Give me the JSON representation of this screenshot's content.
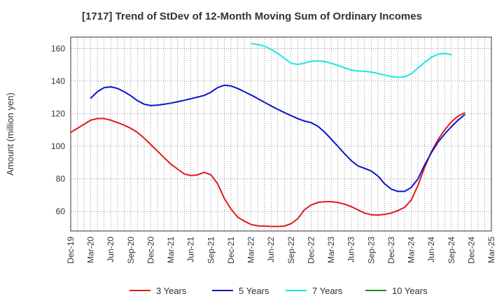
{
  "chart_data": {
    "type": "line",
    "title": "[1717]  Trend of StDev of 12-Month Moving Sum of Ordinary Incomes",
    "ylabel": "Amount (million yen)",
    "xlabel": "",
    "ylim": [
      48,
      167
    ],
    "yticks": [
      60,
      80,
      100,
      120,
      140,
      160
    ],
    "xtick_labels": [
      "Dec-19",
      "Mar-20",
      "Jun-20",
      "Sep-20",
      "Dec-20",
      "Mar-21",
      "Jun-21",
      "Sep-21",
      "Dec-21",
      "Mar-22",
      "Jun-22",
      "Sep-22",
      "Dec-22",
      "Mar-23",
      "Jun-23",
      "Sep-23",
      "Dec-23",
      "Mar-24",
      "Jun-24",
      "Sep-24",
      "Dec-24",
      "Mar-25"
    ],
    "grid": true,
    "legend_position": "bottom",
    "series": [
      {
        "name": "3 Years",
        "color": "#e01a1a",
        "start": "Dec-19",
        "values": [
          108.5,
          111,
          113.5,
          116,
          117,
          117,
          116,
          114.5,
          113,
          111,
          108.5,
          105,
          101,
          97,
          93,
          89,
          86,
          83,
          82,
          82.5,
          84,
          82.5,
          77,
          68,
          61.5,
          56.5,
          54,
          52,
          51.2,
          51,
          50.8,
          50.8,
          51,
          52.5,
          55.5,
          61,
          64,
          65.5,
          66,
          66,
          65.5,
          64.5,
          63,
          61,
          59,
          58,
          57.8,
          58.2,
          59,
          60.5,
          62.5,
          67,
          76,
          87,
          96.5,
          104,
          110,
          115,
          118.5,
          120.5
        ]
      },
      {
        "name": "5 Years",
        "color": "#0a14c8",
        "start": "Mar-20",
        "values": [
          129.5,
          133.5,
          136,
          136.5,
          135.5,
          133.5,
          131,
          128,
          125.8,
          125,
          125.2,
          125.8,
          126.5,
          127.3,
          128.2,
          129.2,
          130.2,
          131.2,
          133.2,
          136,
          137.5,
          137,
          135.5,
          133.5,
          131.5,
          129.3,
          127,
          124.8,
          122.7,
          120.7,
          118.8,
          117,
          115.5,
          114.5,
          112.3,
          108.8,
          104.5,
          100,
          95.5,
          91.2,
          88,
          86.5,
          84.8,
          81.8,
          77,
          73.7,
          72.3,
          72.3,
          74.7,
          80,
          88.5,
          96,
          102.5,
          107.5,
          112,
          116,
          119.3
        ]
      },
      {
        "name": "7 Years",
        "color": "#19e6e6",
        "start": "Mar-22",
        "values": [
          163,
          162.5,
          161.5,
          159.5,
          157,
          154,
          151,
          150.2,
          151,
          152.2,
          152.5,
          152,
          151,
          149.7,
          148.2,
          146.8,
          146.2,
          146,
          145.5,
          144.7,
          143.7,
          142.8,
          142.3,
          142.6,
          144.5,
          148,
          151.5,
          154.5,
          156.5,
          157,
          156.2
        ]
      },
      {
        "name": "10 Years",
        "color": "#1a8a1a",
        "start": "Dec-24",
        "values": []
      }
    ]
  }
}
